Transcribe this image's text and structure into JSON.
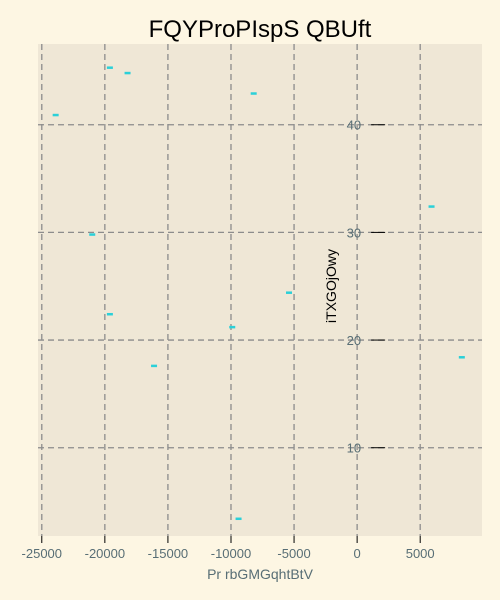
{
  "chart_data": {
    "type": "scatter",
    "title": "FQYProPIspS QBUft",
    "xlabel": "Pr rbGMGqhtBtV",
    "ylabel": "iTXGOjOwy",
    "xlim": [
      -25300,
      9900
    ],
    "ylim": [
      1.8,
      47.5
    ],
    "xticks": [
      -25000,
      -20000,
      -15000,
      -10000,
      -5000,
      0,
      5000
    ],
    "yticks": [
      10,
      20,
      30,
      40
    ],
    "grid": true,
    "legend": "none",
    "marker": "hline",
    "colors": {
      "page_bg": "#fdf6e3",
      "plot_bg": "#efe7d6",
      "grid": "#8c8c8c",
      "points": "#2bd0d8",
      "ticks": "#586e75"
    },
    "series": [
      {
        "x": [
          -19600,
          -18200,
          -8200,
          -23900,
          5900,
          -21000,
          -5400,
          -19600,
          -9900,
          -16100,
          8300,
          -9400
        ],
        "y": [
          45.3,
          44.8,
          42.9,
          40.9,
          32.4,
          29.8,
          24.4,
          22.4,
          21.2,
          17.6,
          18.4,
          3.4
        ]
      }
    ]
  }
}
